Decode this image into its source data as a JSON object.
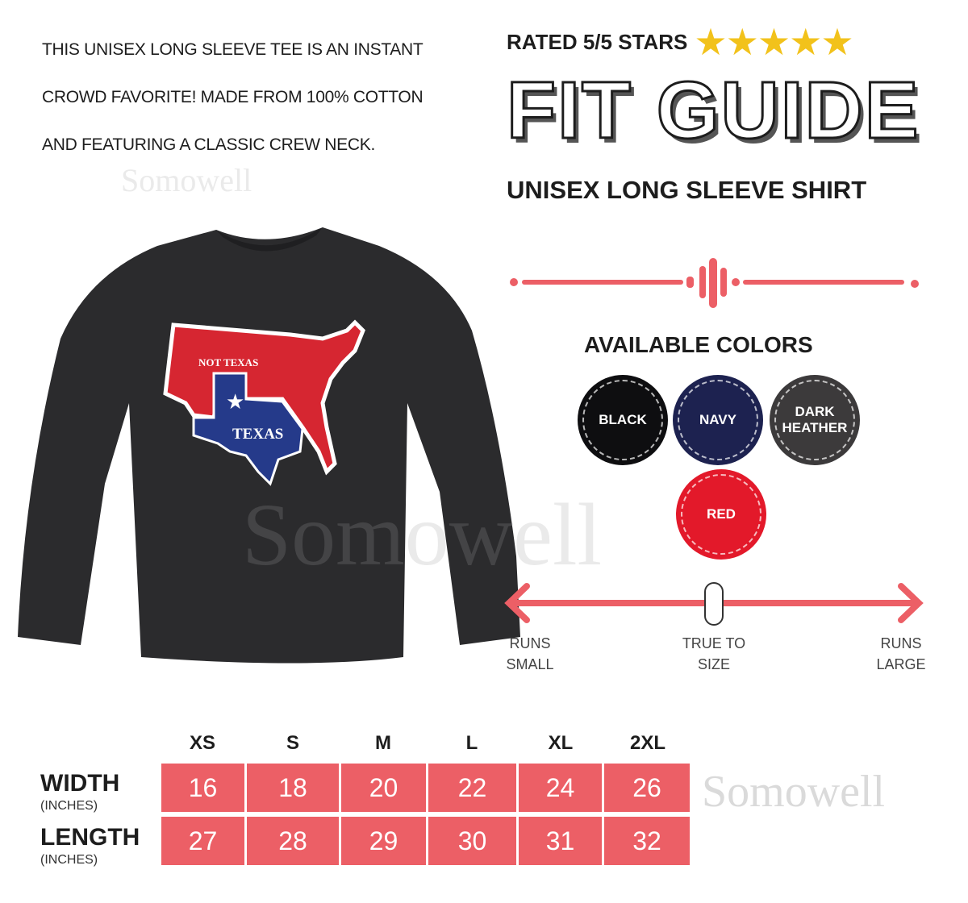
{
  "description": [
    "This unisex long sleeve tee is an instant",
    "crowd favorite! Made from 100% cotton",
    "and featuring a classic crew neck."
  ],
  "rating": {
    "text": "RATED 5/5 STARS",
    "stars": 5,
    "max_stars": 5,
    "star_color": "#f2c21b"
  },
  "title": "FIT GUIDE",
  "subtitle": "UNISEX LONG SLEEVE SHIRT",
  "accent_color": "#ec5f66",
  "shirt": {
    "color": "#2b2b2d",
    "print": {
      "top_label": "NOT TEXAS",
      "bottom_label": "TEXAS",
      "red": "#d62631",
      "blue": "#253a8a"
    }
  },
  "colors_heading": "AVAILABLE COLORS",
  "colors": [
    {
      "name": "BLACK",
      "hex": "#0e0e10"
    },
    {
      "name": "NAVY",
      "hex": "#1d2250"
    },
    {
      "name": "DARK HEATHER",
      "hex": "#3c3a3b"
    },
    {
      "name": "RED",
      "hex": "#e3192a"
    }
  ],
  "fit_scale": {
    "labels": [
      "RUNS SMALL",
      "TRUE TO SIZE",
      "RUNS LARGE"
    ],
    "value": "TRUE TO SIZE"
  },
  "size_table": {
    "sizes": [
      "XS",
      "S",
      "M",
      "L",
      "XL",
      "2XL"
    ],
    "rows": [
      {
        "label": "WIDTH",
        "unit": "(INCHES)",
        "values": [
          "16",
          "18",
          "20",
          "22",
          "24",
          "26"
        ]
      },
      {
        "label": "LENGTH",
        "unit": "(INCHES)",
        "values": [
          "27",
          "28",
          "29",
          "30",
          "31",
          "32"
        ]
      }
    ]
  },
  "watermark": "Somowell"
}
